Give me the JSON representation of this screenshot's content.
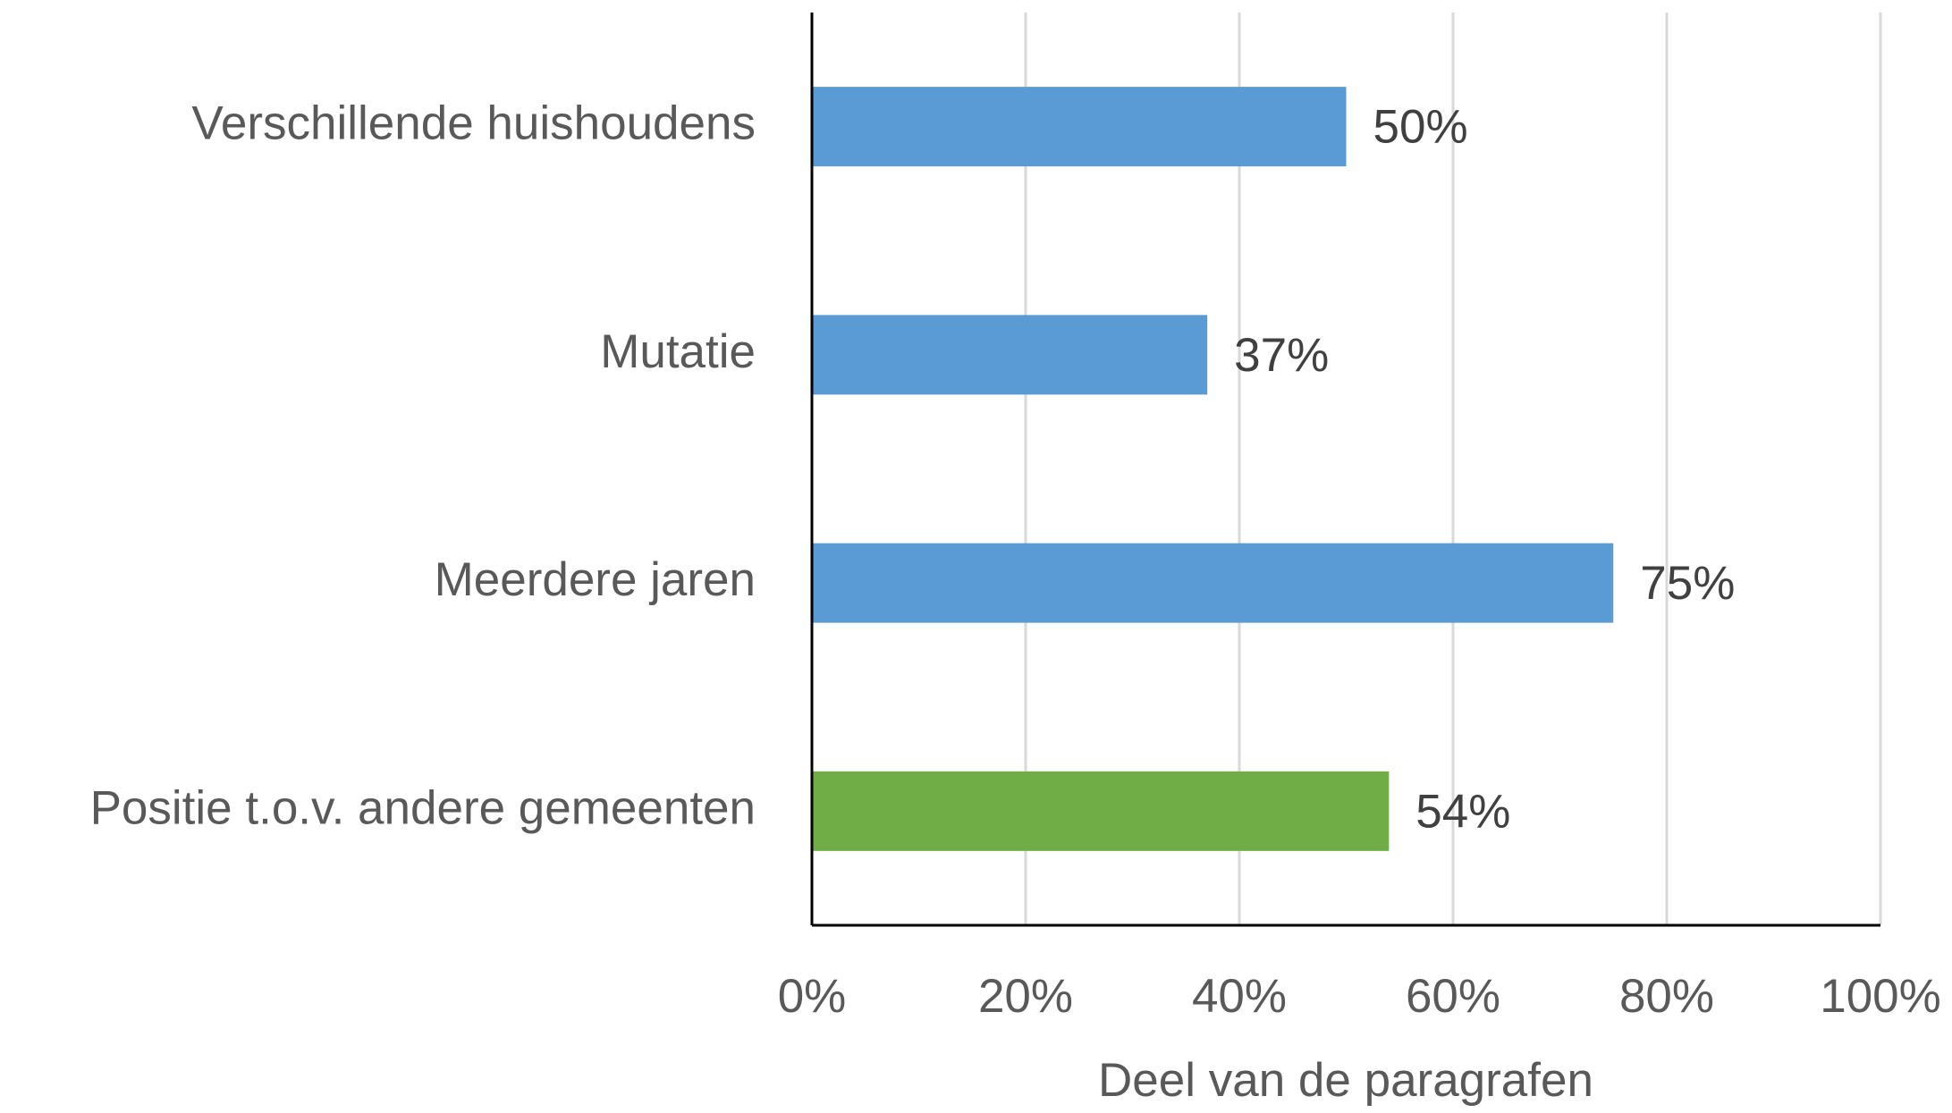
{
  "chart_data": {
    "type": "barh",
    "categories": [
      "Verschillende huishoudens",
      "Mutatie",
      "Meerdere jaren",
      "Positie t.o.v. andere gemeenten"
    ],
    "values": [
      50,
      37,
      75,
      54
    ],
    "value_labels": [
      "50%",
      "37%",
      "75%",
      "54%"
    ],
    "colors": [
      "#5b9bd5",
      "#5b9bd5",
      "#5b9bd5",
      "#70ad47"
    ],
    "xlabel": "Deel van de paragrafen",
    "xlim": [
      0,
      100
    ],
    "xticks": [
      {
        "value": 0,
        "label": "0%"
      },
      {
        "value": 20,
        "label": "20%"
      },
      {
        "value": 40,
        "label": "40%"
      },
      {
        "value": 60,
        "label": "60%"
      },
      {
        "value": 80,
        "label": "80%"
      },
      {
        "value": 100,
        "label": "100%"
      }
    ],
    "grid": true
  }
}
